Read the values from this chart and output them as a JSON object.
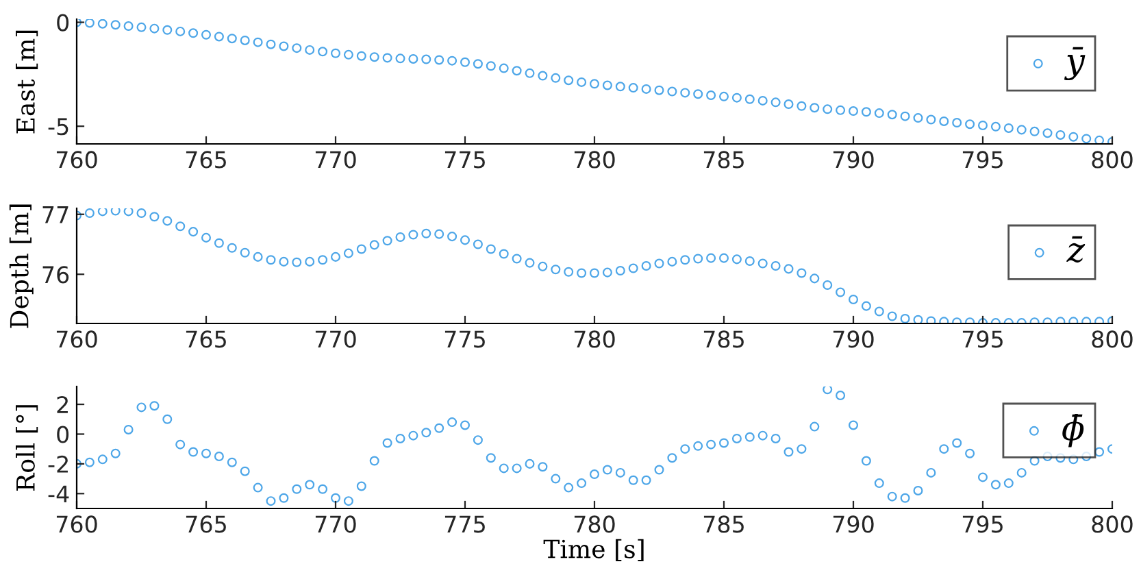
{
  "chart_data": [
    {
      "type": "scatter",
      "ylabel": "East [m]",
      "marker": "circle",
      "legend": "top right",
      "grid": false,
      "xlim": [
        760,
        800
      ],
      "xticks": [
        760,
        765,
        770,
        775,
        780,
        785,
        790,
        795,
        800
      ],
      "ylim": [
        -5.85,
        0.15
      ],
      "yticks": [
        {
          "value": -5,
          "label": "-5"
        },
        0
      ],
      "x": [
        760,
        760.5,
        761,
        761.5,
        762,
        762.5,
        763,
        763.5,
        764,
        764.5,
        765,
        765.5,
        766,
        766.5,
        767,
        767.5,
        768,
        768.5,
        769,
        769.5,
        770,
        770.5,
        771,
        771.5,
        772,
        772.5,
        773,
        773.5,
        774,
        774.5,
        775,
        775.5,
        776,
        776.5,
        777,
        777.5,
        778,
        778.5,
        779,
        779.5,
        780,
        780.5,
        781,
        781.5,
        782,
        782.5,
        783,
        783.5,
        784,
        784.5,
        785,
        785.5,
        786,
        786.5,
        787,
        787.5,
        788,
        788.5,
        789,
        789.5,
        790,
        790.5,
        791,
        791.5,
        792,
        792.5,
        793,
        793.5,
        794,
        794.5,
        795,
        795.5,
        796,
        796.5,
        797,
        797.5,
        798,
        798.5,
        799,
        799.5,
        800
      ],
      "series": [
        {
          "name": "ȳ",
          "color": "#4da6e8",
          "values": [
            0,
            -0.03,
            -0.07,
            -0.12,
            -0.18,
            -0.24,
            -0.3,
            -0.37,
            -0.44,
            -0.52,
            -0.6,
            -0.69,
            -0.78,
            -0.87,
            -0.96,
            -1.06,
            -1.15,
            -1.24,
            -1.33,
            -1.41,
            -1.49,
            -1.56,
            -1.62,
            -1.67,
            -1.71,
            -1.74,
            -1.76,
            -1.78,
            -1.81,
            -1.85,
            -1.92,
            -2.0,
            -2.1,
            -2.21,
            -2.33,
            -2.45,
            -2.57,
            -2.68,
            -2.79,
            -2.88,
            -2.96,
            -3.03,
            -3.09,
            -3.15,
            -3.21,
            -3.27,
            -3.33,
            -3.39,
            -3.45,
            -3.51,
            -3.57,
            -3.63,
            -3.7,
            -3.77,
            -3.85,
            -3.94,
            -4.03,
            -4.11,
            -4.18,
            -4.23,
            -4.27,
            -4.31,
            -4.37,
            -4.44,
            -4.52,
            -4.6,
            -4.68,
            -4.76,
            -4.83,
            -4.9,
            -4.96,
            -5.02,
            -5.09,
            -5.17,
            -5.25,
            -5.33,
            -5.42,
            -5.51,
            -5.6,
            -5.68,
            -5.75
          ]
        }
      ]
    },
    {
      "type": "scatter",
      "ylabel": "Depth [m]",
      "marker": "circle",
      "legend": "top right",
      "grid": false,
      "xlim": [
        760,
        800
      ],
      "xticks": [
        760,
        765,
        770,
        775,
        780,
        785,
        790,
        795,
        800
      ],
      "ylim": [
        75.18,
        77.1
      ],
      "yticks": [
        76,
        77
      ],
      "x": [
        760,
        760.5,
        761,
        761.5,
        762,
        762.5,
        763,
        763.5,
        764,
        764.5,
        765,
        765.5,
        766,
        766.5,
        767,
        767.5,
        768,
        768.5,
        769,
        769.5,
        770,
        770.5,
        771,
        771.5,
        772,
        772.5,
        773,
        773.5,
        774,
        774.5,
        775,
        775.5,
        776,
        776.5,
        777,
        777.5,
        778,
        778.5,
        779,
        779.5,
        780,
        780.5,
        781,
        781.5,
        782,
        782.5,
        783,
        783.5,
        784,
        784.5,
        785,
        785.5,
        786,
        786.5,
        787,
        787.5,
        788,
        788.5,
        789,
        789.5,
        790,
        790.5,
        791,
        791.5,
        792,
        792.5,
        793,
        793.5,
        794,
        794.5,
        795,
        795.5,
        796,
        796.5,
        797,
        797.5,
        798,
        798.5,
        799,
        799.5,
        800
      ],
      "series": [
        {
          "name": "z̄",
          "color": "#4da6e8",
          "values": [
            76.98,
            77.02,
            77.05,
            77.06,
            77.05,
            77.02,
            76.96,
            76.89,
            76.8,
            76.71,
            76.61,
            76.52,
            76.44,
            76.36,
            76.29,
            76.24,
            76.21,
            76.2,
            76.21,
            76.24,
            76.29,
            76.35,
            76.42,
            76.49,
            76.56,
            76.62,
            76.66,
            76.68,
            76.67,
            76.63,
            76.57,
            76.5,
            76.42,
            76.34,
            76.26,
            76.19,
            76.13,
            76.08,
            76.04,
            76.02,
            76.02,
            76.03,
            76.06,
            76.1,
            76.14,
            76.18,
            76.21,
            76.24,
            76.26,
            76.27,
            76.27,
            76.25,
            76.22,
            76.18,
            76.14,
            76.09,
            76.02,
            75.93,
            75.82,
            75.7,
            75.58,
            75.47,
            75.38,
            75.3,
            75.26,
            75.24,
            75.22,
            75.21,
            75.2,
            75.2,
            75.19,
            75.19,
            75.19,
            75.19,
            75.2,
            75.2,
            75.21,
            75.21,
            75.21,
            75.21,
            75.22
          ]
        }
      ]
    },
    {
      "type": "scatter",
      "ylabel": "Roll [°]",
      "xlabel": "Time [s]",
      "marker": "circle",
      "legend": "top right",
      "grid": false,
      "xlim": [
        760,
        800
      ],
      "xticks": [
        760,
        765,
        770,
        775,
        780,
        785,
        790,
        795,
        800
      ],
      "ylim": [
        -5,
        3.2
      ],
      "yticks": [
        {
          "value": -4,
          "label": "-4"
        },
        {
          "value": -2,
          "label": "-2"
        },
        0,
        2
      ],
      "x": [
        760,
        760.5,
        761,
        761.5,
        762,
        762.5,
        763,
        763.5,
        764,
        764.5,
        765,
        765.5,
        766,
        766.5,
        767,
        767.5,
        768,
        768.5,
        769,
        769.5,
        770,
        770.5,
        771,
        771.5,
        772,
        772.5,
        773,
        773.5,
        774,
        774.5,
        775,
        775.5,
        776,
        776.5,
        777,
        777.5,
        778,
        778.5,
        779,
        779.5,
        780,
        780.5,
        781,
        781.5,
        782,
        782.5,
        783,
        783.5,
        784,
        784.5,
        785,
        785.5,
        786,
        786.5,
        787,
        787.5,
        788,
        788.5,
        789,
        789.5,
        790,
        790.5,
        791,
        791.5,
        792,
        792.5,
        793,
        793.5,
        794,
        794.5,
        795,
        795.5,
        796,
        796.5,
        797,
        797.5,
        798,
        798.5,
        799,
        799.5,
        800
      ],
      "series": [
        {
          "name": "ϕ̄",
          "color": "#4da6e8",
          "values": [
            -2.0,
            -1.9,
            -1.7,
            -1.3,
            0.3,
            1.8,
            1.9,
            1.0,
            -0.7,
            -1.2,
            -1.3,
            -1.5,
            -1.9,
            -2.5,
            -3.6,
            -4.5,
            -4.3,
            -3.7,
            -3.4,
            -3.7,
            -4.3,
            -4.5,
            -3.5,
            -1.8,
            -0.6,
            -0.3,
            -0.1,
            0.1,
            0.4,
            0.8,
            0.6,
            -0.4,
            -1.6,
            -2.3,
            -2.3,
            -2.0,
            -2.2,
            -3.0,
            -3.6,
            -3.3,
            -2.7,
            -2.4,
            -2.6,
            -3.1,
            -3.1,
            -2.4,
            -1.6,
            -1.0,
            -0.8,
            -0.7,
            -0.6,
            -0.3,
            -0.2,
            -0.1,
            -0.3,
            -1.2,
            -1.0,
            0.5,
            3.0,
            2.6,
            0.6,
            -1.8,
            -3.3,
            -4.2,
            -4.3,
            -3.8,
            -2.6,
            -1.0,
            -0.6,
            -1.3,
            -2.9,
            -3.4,
            -3.3,
            -2.6,
            -1.8,
            -1.5,
            -1.6,
            -1.7,
            -1.5,
            -1.2,
            -1.0
          ]
        }
      ]
    }
  ]
}
